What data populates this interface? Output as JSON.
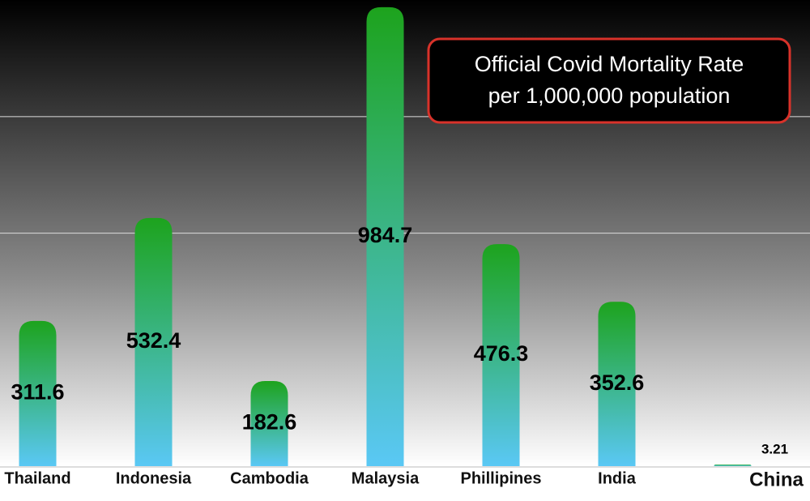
{
  "chart_data": {
    "type": "bar",
    "title": "Official Covid Mortality Rate",
    "subtitle": "per 1,000,000 population",
    "categories": [
      "Thailand",
      "Indonesia",
      "Cambodia",
      "Malaysia",
      "Phillipines",
      "India",
      "China"
    ],
    "values": [
      311.6,
      532.4,
      182.6,
      984.7,
      476.3,
      352.6,
      3.21
    ],
    "colors": [
      "#1da31d",
      "#5ac8f5"
    ],
    "ylim": [
      0,
      995
    ],
    "yticks": [
      500,
      750
    ],
    "grid": true
  }
}
